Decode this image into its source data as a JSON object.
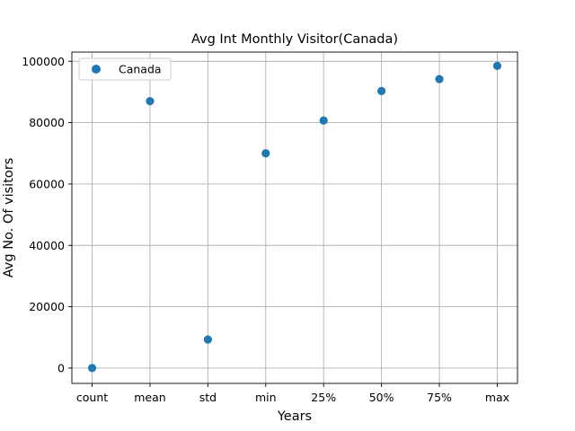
{
  "chart_data": {
    "type": "scatter",
    "title": "Avg Int Monthly Visitor(Canada)",
    "xlabel": "Years",
    "ylabel": "Avg No. Of visitors",
    "categories": [
      "count",
      "mean",
      "std",
      "min",
      "25%",
      "50%",
      "75%",
      "max"
    ],
    "series": [
      {
        "name": "Canada",
        "color": "#1f77b4",
        "values": [
          12,
          87000,
          9300,
          70000,
          80700,
          90300,
          94200,
          98500
        ]
      }
    ],
    "ylim": [
      -5000,
      103000
    ],
    "yticks": [
      0,
      20000,
      40000,
      60000,
      80000,
      100000
    ],
    "grid": true,
    "legend_position": "top-left"
  }
}
